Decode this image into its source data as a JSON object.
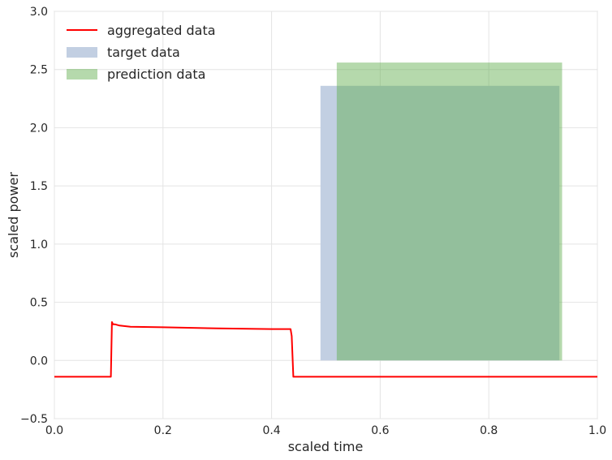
{
  "chart_data": {
    "type": "line",
    "xlabel": "scaled time",
    "ylabel": "scaled power",
    "xlim": [
      0.0,
      1.0
    ],
    "ylim": [
      -0.5,
      3.0
    ],
    "x_ticks": [
      "0.0",
      "0.2",
      "0.4",
      "0.6",
      "0.8",
      "1.0"
    ],
    "y_ticks": [
      "−0.5",
      "0.0",
      "0.5",
      "1.0",
      "1.5",
      "2.0",
      "2.5",
      "3.0"
    ],
    "grid": true,
    "legend_position": "top-left",
    "series": [
      {
        "name": "aggregated data",
        "kind": "line",
        "color": "#ff0000",
        "x": [
          0.0,
          0.104,
          0.106,
          0.108,
          0.112,
          0.12,
          0.14,
          0.2,
          0.3,
          0.4,
          0.435,
          0.437,
          0.44,
          0.5,
          0.7,
          1.0
        ],
        "y": [
          -0.14,
          -0.14,
          0.33,
          0.31,
          0.31,
          0.3,
          0.29,
          0.285,
          0.275,
          0.27,
          0.27,
          0.21,
          -0.14,
          -0.14,
          -0.14,
          -0.14
        ]
      },
      {
        "name": "target data",
        "kind": "span",
        "color": "#c2cfe2",
        "x_start": 0.49,
        "x_end": 0.93,
        "y_bottom": 0.0,
        "y_top": 2.36
      },
      {
        "name": "prediction data",
        "kind": "span",
        "color": "#5aaa46",
        "opacity": 0.45,
        "x_start": 0.52,
        "x_end": 0.935,
        "y_bottom": 0.0,
        "y_top": 2.56
      }
    ]
  }
}
